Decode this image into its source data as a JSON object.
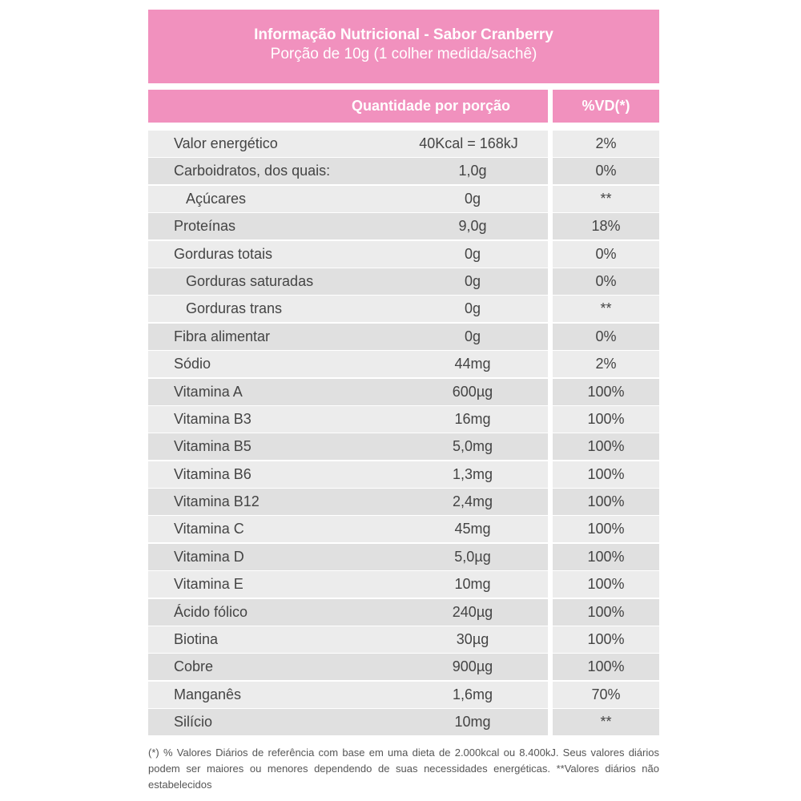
{
  "header": {
    "title": "Informação Nutricional - Sabor Cranberry",
    "subtitle": "Porção de 10g (1 colher medida/sachê)"
  },
  "columns": {
    "quantity": "Quantidade por porção",
    "dv": "%VD(*)"
  },
  "rows": [
    {
      "name": "Valor energético",
      "qty": "40Kcal = 168kJ",
      "dv": "2%"
    },
    {
      "name": "Carboidratos, dos quais:",
      "qty": "1,0g",
      "dv": "0%"
    },
    {
      "name": "Açúcares",
      "qty": "0g",
      "dv": "**"
    },
    {
      "name": "Proteínas",
      "qty": "9,0g",
      "dv": "18%"
    },
    {
      "name": "Gorduras totais",
      "qty": "0g",
      "dv": "0%"
    },
    {
      "name": "Gorduras saturadas",
      "qty": "0g",
      "dv": "0%"
    },
    {
      "name": "Gorduras trans",
      "qty": "0g",
      "dv": "**"
    },
    {
      "name": "Fibra alimentar",
      "qty": "0g",
      "dv": "0%"
    },
    {
      "name": "Sódio",
      "qty": "44mg",
      "dv": "2%"
    },
    {
      "name": "Vitamina A",
      "qty": "600µg",
      "dv": "100%"
    },
    {
      "name": "Vitamina B3",
      "qty": "16mg",
      "dv": "100%"
    },
    {
      "name": "Vitamina B5",
      "qty": "5,0mg",
      "dv": "100%"
    },
    {
      "name": "Vitamina B6",
      "qty": "1,3mg",
      "dv": "100%"
    },
    {
      "name": "Vitamina B12",
      "qty": "2,4mg",
      "dv": "100%"
    },
    {
      "name": "Vitamina C",
      "qty": "45mg",
      "dv": "100%"
    },
    {
      "name": "Vitamina D",
      "qty": "5,0µg",
      "dv": "100%"
    },
    {
      "name": "Vitamina E",
      "qty": "10mg",
      "dv": "100%"
    },
    {
      "name": "Ácido fólico",
      "qty": "240µg",
      "dv": "100%"
    },
    {
      "name": "Biotina",
      "qty": "30µg",
      "dv": "100%"
    },
    {
      "name": "Cobre",
      "qty": "900µg",
      "dv": "100%"
    },
    {
      "name": "Manganês",
      "qty": "1,6mg",
      "dv": "70%"
    },
    {
      "name": "Silício",
      "qty": "10mg",
      "dv": "**"
    }
  ],
  "footnote": "(*) % Valores Diários de referência com base em uma dieta de 2.000kcal ou 8.400kJ. Seus valores diários podem ser maiores ou menores dependendo de suas necessidades energéticas. **Valores diários não estabelecidos",
  "colors": {
    "accent": "#f191be",
    "row_light": "#ececec",
    "row_dark": "#e0e0e0"
  }
}
